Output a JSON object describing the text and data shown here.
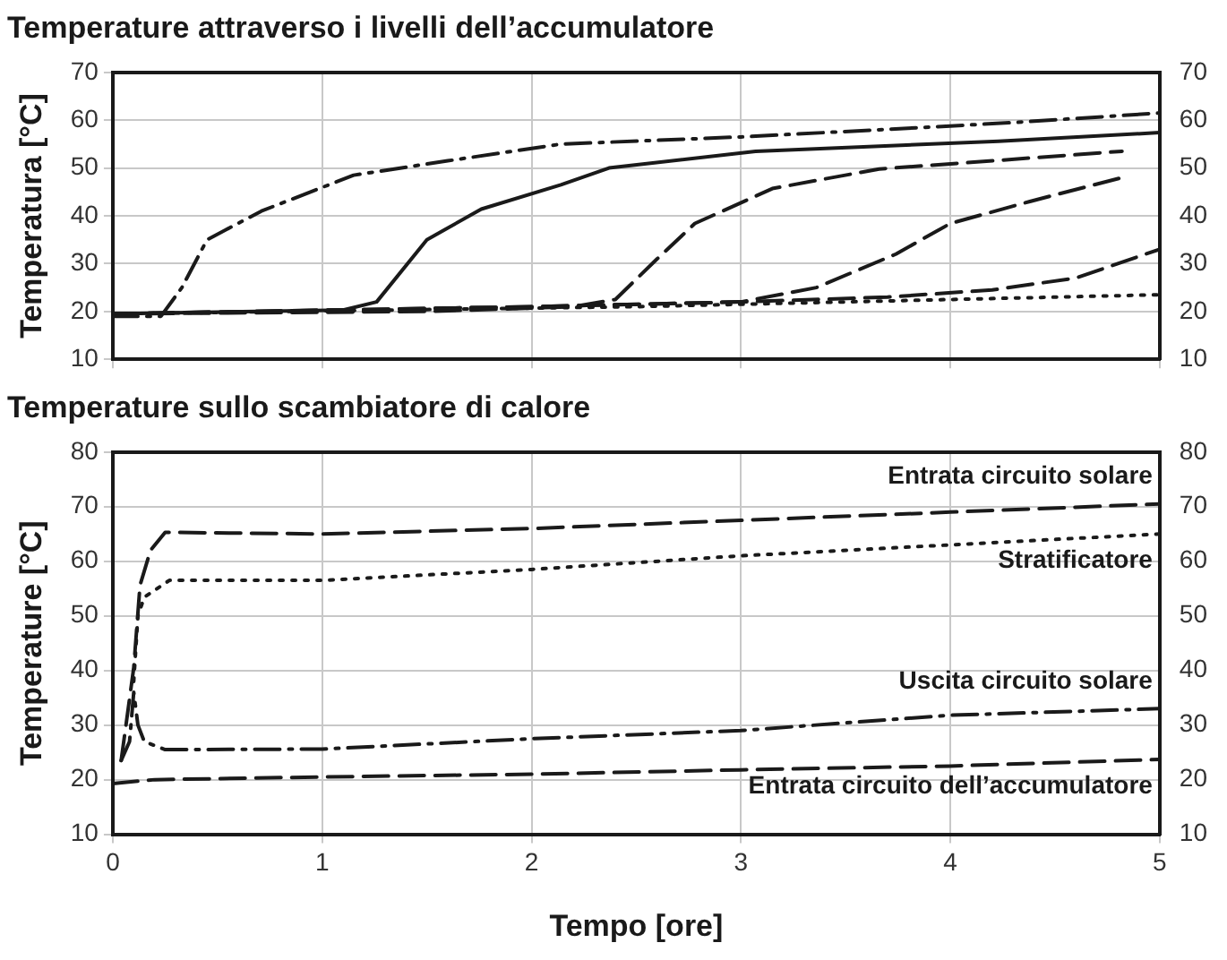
{
  "chart_data": [
    {
      "type": "line",
      "title": "Temperature attraverso i livelli dell’accumulatore",
      "ylabel": "Temperatura [°C]",
      "xlim": [
        0,
        5
      ],
      "xticks": [
        0,
        1,
        2,
        3,
        4,
        5
      ],
      "ylim": [
        10,
        70
      ],
      "yticks": [
        10,
        20,
        30,
        40,
        50,
        60,
        70
      ],
      "y2lim": [
        10,
        70
      ],
      "y2ticks": [
        10,
        20,
        30,
        40,
        50,
        60,
        70
      ],
      "tick_labels": "y",
      "grid": true,
      "legend": false,
      "marker": "none",
      "series": [
        {
          "color": "#1a1a1a",
          "line_style": "dashdot",
          "x": [
            0,
            0.23,
            0.33,
            0.45,
            0.71,
            1.15,
            1.6,
            2.14,
            3,
            3.66,
            4.3,
            5
          ],
          "values": [
            19,
            19,
            25,
            35,
            41,
            48.5,
            51.5,
            55,
            56.5,
            58,
            59.5,
            61.5
          ]
        },
        {
          "color": "#1a1a1a",
          "line_style": "solid",
          "x": [
            0,
            1.1,
            1.26,
            1.5,
            1.76,
            2.14,
            2.37,
            3.07,
            4.23,
            5
          ],
          "values": [
            19.5,
            20.3,
            22,
            35,
            41.4,
            46.5,
            50,
            53.5,
            55.6,
            57.4
          ]
        },
        {
          "color": "#1a1a1a",
          "line_style": "dashed",
          "x": [
            0,
            1.5,
            2.2,
            2.4,
            2.6,
            2.78,
            3.15,
            3.66,
            4.23,
            4.82
          ],
          "values": [
            19.5,
            20,
            21,
            22.5,
            31,
            38.4,
            45.7,
            49.8,
            51.6,
            53.5
          ]
        },
        {
          "color": "#1a1a1a",
          "line_style": "dashed",
          "x": [
            0,
            2,
            3,
            3.36,
            3.74,
            4,
            4.38,
            4.82
          ],
          "values": [
            19.5,
            21,
            22,
            25,
            32,
            38.4,
            43,
            48
          ]
        },
        {
          "color": "#1a1a1a",
          "line_style": "dashed",
          "x": [
            0,
            2,
            3,
            3.7,
            4.2,
            4.6,
            5
          ],
          "values": [
            19.5,
            21,
            22,
            23,
            24.5,
            27,
            33
          ]
        },
        {
          "color": "#1a1a1a",
          "line_style": "dotted",
          "x": [
            0,
            2.5,
            3,
            4,
            5
          ],
          "values": [
            19.5,
            21,
            21.5,
            22.5,
            23.5
          ]
        }
      ]
    },
    {
      "type": "line",
      "title": "Temperature sullo scambiatore di calore",
      "xlabel": "Tempo [ore]",
      "ylabel": "Temperature [°C]",
      "xlim": [
        0,
        5
      ],
      "xticks": [
        0,
        1,
        2,
        3,
        4,
        5
      ],
      "ylim": [
        10,
        80
      ],
      "yticks": [
        10,
        20,
        30,
        40,
        50,
        60,
        70,
        80
      ],
      "y2lim": [
        10,
        80
      ],
      "y2ticks": [
        10,
        20,
        30,
        40,
        50,
        60,
        70,
        80
      ],
      "grid": true,
      "legend": false,
      "marker": "none",
      "series": [
        {
          "name": "Entrata circuito solare",
          "color": "#1a1a1a",
          "line_style": "dashed",
          "x": [
            0.04,
            0.1,
            0.13,
            0.18,
            0.25,
            1,
            2,
            3,
            4,
            5
          ],
          "values": [
            23.5,
            40.5,
            55.6,
            62,
            65.3,
            65,
            66,
            67.5,
            69,
            70.5
          ]
        },
        {
          "name": "Stratificatore",
          "color": "#1a1a1a",
          "line_style": "dotted",
          "x": [
            0.1,
            0.12,
            0.15,
            0.27,
            1,
            2,
            3,
            4,
            5
          ],
          "values": [
            38,
            50,
            53.4,
            56.5,
            56.5,
            58.5,
            61,
            63,
            65
          ]
        },
        {
          "name": "Uscita circuito solare",
          "color": "#1a1a1a",
          "line_style": "dashdot",
          "x": [
            0.04,
            0.08,
            0.1,
            0.12,
            0.15,
            0.25,
            1,
            2,
            3,
            4,
            5
          ],
          "values": [
            23.5,
            27,
            36,
            30,
            27,
            25.5,
            25.6,
            27.5,
            29,
            31.8,
            33
          ]
        },
        {
          "name": "Entrata circuito dell’accumulatore",
          "color": "#1a1a1a",
          "line_style": "dashed",
          "x": [
            0,
            0.2,
            1,
            2,
            3,
            4,
            5
          ],
          "values": [
            19.3,
            20,
            20.5,
            21,
            21.8,
            22.5,
            23.7
          ]
        }
      ]
    }
  ]
}
